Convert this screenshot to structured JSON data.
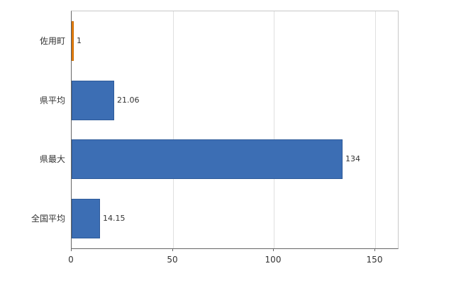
{
  "chart_data": {
    "type": "bar",
    "orientation": "horizontal",
    "title": "",
    "xlabel": "",
    "ylabel": "",
    "categories": [
      "佐用町",
      "県平均",
      "県最大",
      "全国平均"
    ],
    "values": [
      1,
      21.06,
      134,
      14.15
    ],
    "value_labels": [
      "1",
      "21.06",
      "134",
      "14.15"
    ],
    "bar_colors": [
      "#f08300",
      "#3c6eb4",
      "#3c6eb4",
      "#3c6eb4"
    ],
    "bar_border_colors": [
      "#c96b00",
      "#2e5a99",
      "#2e5a99",
      "#2e5a99"
    ],
    "x_ticks": [
      0,
      50,
      100,
      150
    ],
    "xlim": [
      0,
      161.2
    ],
    "grid": true,
    "legend": false
  },
  "colors": {
    "background": "#ffffff",
    "axis": "#666666",
    "plot_border": "#c8c8c8",
    "gridline": "#e0e0e0",
    "text": "#333333"
  }
}
